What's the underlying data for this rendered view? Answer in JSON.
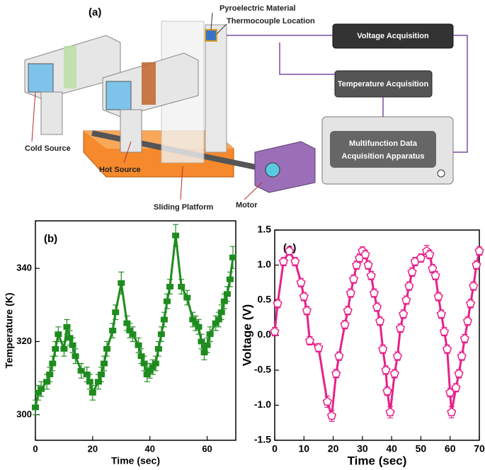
{
  "diagram": {
    "panel_label": "(a)",
    "pyroelectric": "Pyroelectric Material",
    "thermocouple": "Thermocouple Location",
    "voltage_box": "Voltage Acquisition",
    "temperature_box": "Temperature Acquisition",
    "apparatus": [
      "Multifunction Data",
      "Acquisition Apparatus"
    ],
    "cold_source": "Cold Source",
    "hot_source": "Hot Source",
    "platform": "Sliding Platform",
    "motor": "Motor"
  },
  "chart_data": [
    {
      "type": "line",
      "panel_label": "(b)",
      "x_label": "Time (sec)",
      "y_label": "Temperature (K)",
      "color": "#1e8c1e",
      "marker": "square",
      "x": [
        0,
        1,
        2,
        4,
        5,
        6,
        7,
        8,
        10,
        11,
        12,
        13,
        14,
        16,
        18,
        19,
        20,
        22,
        23,
        24,
        25,
        27,
        28,
        30,
        32,
        33,
        34,
        36,
        37,
        38,
        39,
        40,
        41,
        42,
        43,
        44,
        45,
        46,
        47,
        49,
        51,
        53,
        55,
        56,
        57,
        58,
        59,
        60,
        61,
        63,
        64,
        65,
        66,
        67,
        68,
        69
      ],
      "values": [
        302,
        306,
        307,
        309,
        311,
        314,
        318,
        322,
        318,
        324,
        321,
        319,
        316,
        312,
        311,
        309,
        306,
        309,
        311,
        314,
        318,
        323,
        328,
        336,
        325,
        323,
        322,
        319,
        316,
        314,
        311,
        312,
        313,
        314,
        318,
        322,
        326,
        331,
        335,
        349,
        335,
        332,
        326,
        325,
        324,
        320,
        317,
        319,
        322,
        325,
        326,
        328,
        331,
        333,
        337,
        343
      ],
      "errors": [
        2,
        2,
        2,
        2,
        2,
        2,
        2,
        2,
        2,
        2,
        2,
        2,
        2,
        2,
        2,
        2,
        2,
        2,
        2,
        2,
        2,
        2,
        2,
        3,
        2,
        2,
        2,
        2,
        2,
        2,
        2,
        2,
        2,
        2,
        2,
        2,
        2,
        2,
        2,
        3,
        2,
        2,
        2,
        2,
        2,
        2,
        2,
        2,
        2,
        2,
        2,
        2,
        2,
        2,
        2,
        3
      ],
      "xlim": [
        0,
        70
      ],
      "ylim": [
        293,
        353
      ],
      "xticks": [
        0,
        20,
        40,
        60
      ],
      "yticks": [
        300,
        320,
        340
      ]
    },
    {
      "type": "line",
      "panel_label": "(c)",
      "x_label": "Time (sec)",
      "y_label": "Voltage (V)",
      "color": "#e8208a",
      "marker": "pentagon",
      "x": [
        0,
        1,
        3,
        5,
        7,
        9,
        10,
        11,
        12,
        15,
        18,
        19.5,
        21,
        22,
        24,
        25,
        26,
        27,
        28,
        29,
        30,
        31,
        32,
        33,
        34,
        35,
        36,
        37,
        38,
        38.5,
        39.5,
        41,
        42,
        43,
        44,
        45,
        46,
        47,
        48,
        50,
        52,
        53,
        54,
        55,
        56,
        57,
        58,
        59,
        60,
        60.5,
        62,
        63,
        64,
        65,
        66,
        67,
        68,
        69,
        70
      ],
      "values": [
        0.05,
        0.45,
        1.05,
        1.2,
        1.05,
        0.75,
        0.55,
        0.35,
        -0.08,
        -0.18,
        -0.95,
        -1.15,
        -0.55,
        -0.3,
        0.15,
        0.35,
        0.6,
        0.8,
        1.0,
        1.1,
        1.2,
        1.15,
        1.0,
        0.85,
        0.6,
        0.4,
        0.2,
        -0.2,
        -0.5,
        -0.8,
        -1.1,
        -0.55,
        -0.3,
        0.1,
        0.3,
        0.5,
        0.7,
        0.9,
        1.05,
        1.1,
        1.2,
        1.15,
        0.95,
        0.85,
        0.55,
        0.3,
        0.05,
        -0.2,
        -0.82,
        -1.1,
        -0.75,
        -0.55,
        -0.3,
        -0.05,
        0.2,
        0.45,
        0.7,
        1.0,
        1.2
      ],
      "errors": [
        0.06,
        0.06,
        0.06,
        0.06,
        0.06,
        0.06,
        0.06,
        0.06,
        0.06,
        0.06,
        0.08,
        0.08,
        0.06,
        0.06,
        0.06,
        0.06,
        0.06,
        0.06,
        0.06,
        0.06,
        0.06,
        0.06,
        0.06,
        0.06,
        0.06,
        0.06,
        0.06,
        0.06,
        0.06,
        0.06,
        0.08,
        0.06,
        0.06,
        0.06,
        0.06,
        0.06,
        0.06,
        0.06,
        0.06,
        0.06,
        0.08,
        0.06,
        0.06,
        0.06,
        0.06,
        0.06,
        0.06,
        0.06,
        0.06,
        0.08,
        0.06,
        0.06,
        0.06,
        0.06,
        0.06,
        0.06,
        0.06,
        0.06,
        0.06
      ],
      "xlim": [
        0,
        70
      ],
      "ylim": [
        -1.5,
        1.5
      ],
      "xticks": [
        0,
        10,
        20,
        30,
        40,
        50,
        60,
        70
      ],
      "yticks": [
        -1.5,
        {
          "value": -1,
          "label": "-1.0"
        },
        -0.5,
        {
          "value": 0,
          "label": "0.0"
        },
        0.5,
        {
          "value": 1,
          "label": "1.0"
        },
        1.5
      ]
    }
  ]
}
